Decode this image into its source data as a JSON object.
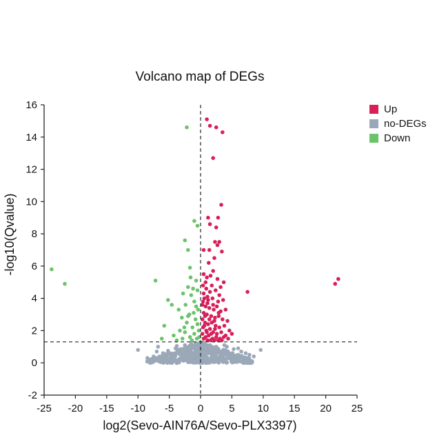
{
  "chart_data": {
    "type": "scatter",
    "title": "Volcano map of DEGs",
    "xlabel": "log2(Sevo-AIN76A/Sevo-PLX3397)",
    "ylabel": "-log10(Qvalue)",
    "xlim": [
      -25,
      25
    ],
    "ylim": [
      -2,
      16
    ],
    "xticks": [
      -25,
      -20,
      -15,
      -10,
      -5,
      0,
      5,
      10,
      15,
      20,
      25
    ],
    "yticks": [
      -2,
      0,
      2,
      4,
      6,
      8,
      10,
      12,
      14,
      16
    ],
    "thresholds": {
      "x": 0,
      "y": 1.3
    },
    "legend": [
      {
        "name": "Up",
        "color": "#d81f5a"
      },
      {
        "name": "no-DEGs",
        "color": "#9aa8b8"
      },
      {
        "name": "Down",
        "color": "#6cc36a"
      }
    ],
    "series": [
      {
        "name": "Up",
        "color": "#d81f5a",
        "points": [
          [
            1.0,
            15.1
          ],
          [
            1.5,
            14.7
          ],
          [
            2.5,
            14.6
          ],
          [
            3.5,
            14.3
          ],
          [
            2.0,
            12.7
          ],
          [
            3.3,
            9.8
          ],
          [
            1.2,
            9.0
          ],
          [
            2.8,
            9.0
          ],
          [
            1.5,
            8.6
          ],
          [
            2.5,
            8.4
          ],
          [
            2.3,
            7.5
          ],
          [
            3.0,
            7.5
          ],
          [
            2.7,
            7.3
          ],
          [
            0.5,
            7.0
          ],
          [
            1.4,
            7.0
          ],
          [
            3.4,
            6.9
          ],
          [
            1.3,
            6.2
          ],
          [
            2.2,
            6.5
          ],
          [
            2.0,
            5.7
          ],
          [
            0.5,
            5.5
          ],
          [
            1.0,
            5.3
          ],
          [
            1.6,
            5.4
          ],
          [
            2.7,
            5.2
          ],
          [
            3.7,
            5.0
          ],
          [
            7.5,
            4.4
          ],
          [
            22.0,
            5.2
          ],
          [
            21.5,
            4.9
          ],
          [
            0.4,
            4.8
          ],
          [
            0.9,
            4.6
          ],
          [
            1.5,
            4.4
          ],
          [
            2.4,
            4.5
          ],
          [
            3.0,
            4.2
          ],
          [
            0.6,
            4.0
          ],
          [
            1.2,
            3.9
          ],
          [
            1.9,
            4.0
          ],
          [
            2.8,
            3.8
          ],
          [
            3.6,
            3.9
          ],
          [
            0.3,
            3.6
          ],
          [
            0.8,
            3.5
          ],
          [
            1.4,
            3.4
          ],
          [
            2.1,
            3.3
          ],
          [
            2.6,
            3.5
          ],
          [
            3.2,
            3.2
          ],
          [
            4.0,
            3.3
          ],
          [
            0.5,
            3.1
          ],
          [
            1.0,
            3.0
          ],
          [
            1.7,
            2.9
          ],
          [
            2.3,
            2.8
          ],
          [
            2.9,
            2.9
          ],
          [
            3.5,
            2.7
          ],
          [
            4.3,
            2.6
          ],
          [
            0.3,
            2.7
          ],
          [
            0.7,
            2.5
          ],
          [
            1.2,
            2.4
          ],
          [
            1.8,
            2.5
          ],
          [
            2.4,
            2.3
          ],
          [
            3.0,
            2.2
          ],
          [
            3.8,
            2.3
          ],
          [
            4.6,
            2.0
          ],
          [
            0.4,
            2.2
          ],
          [
            0.9,
            2.0
          ],
          [
            1.5,
            2.1
          ],
          [
            2.0,
            1.9
          ],
          [
            2.6,
            1.8
          ],
          [
            3.3,
            1.9
          ],
          [
            4.0,
            1.7
          ],
          [
            5.0,
            1.8
          ],
          [
            0.3,
            1.8
          ],
          [
            0.8,
            1.6
          ],
          [
            1.3,
            1.7
          ],
          [
            1.9,
            1.5
          ],
          [
            2.5,
            1.6
          ],
          [
            3.1,
            1.5
          ],
          [
            3.7,
            1.6
          ],
          [
            4.4,
            1.5
          ],
          [
            0.5,
            1.5
          ],
          [
            1.1,
            1.4
          ],
          [
            1.6,
            1.4
          ],
          [
            2.2,
            1.4
          ],
          [
            2.8,
            1.4
          ],
          [
            3.4,
            1.4
          ],
          [
            0.4,
            3.8
          ],
          [
            1.1,
            3.7
          ],
          [
            0.7,
            2.9
          ],
          [
            1.4,
            2.7
          ],
          [
            2.2,
            2.6
          ],
          [
            0.6,
            2.3
          ],
          [
            1.0,
            1.9
          ],
          [
            1.7,
            1.8
          ],
          [
            2.3,
            2.1
          ],
          [
            0.5,
            4.3
          ],
          [
            1.1,
            4.1
          ],
          [
            0.8,
            5.0
          ],
          [
            1.8,
            4.8
          ],
          [
            3.2,
            4.7
          ],
          [
            2.0,
            3.6
          ],
          [
            2.9,
            3.1
          ]
        ]
      },
      {
        "name": "no-DEGs",
        "color": "#9aa8b8",
        "points": [
          [
            -10.0,
            0.8
          ],
          [
            9.6,
            0.8
          ],
          [
            -6.0,
            0.6
          ],
          [
            6.5,
            0.7
          ],
          [
            7.8,
            0.5
          ],
          [
            -7.5,
            0.4
          ],
          [
            -5.0,
            0.3
          ],
          [
            5.0,
            0.4
          ],
          [
            -3.0,
            0.2
          ],
          [
            3.5,
            0.3
          ],
          [
            -4.0,
            0.9
          ],
          [
            4.2,
            1.0
          ],
          [
            -2.5,
            1.1
          ],
          [
            2.5,
            1.0
          ],
          [
            -1.5,
            1.2
          ],
          [
            1.5,
            1.1
          ],
          [
            -0.5,
            1.2
          ],
          [
            0.5,
            1.25
          ],
          [
            -6.8,
            1.0
          ],
          [
            6.0,
            0.9
          ],
          [
            -8.5,
            0.3
          ],
          [
            8.5,
            0.4
          ],
          [
            -5.5,
            0.1
          ],
          [
            5.5,
            0.15
          ],
          [
            -2.0,
            0.05
          ],
          [
            2.0,
            0.05
          ],
          [
            -3.5,
            0.6
          ],
          [
            3.0,
            0.7
          ],
          [
            -1.0,
            0.5
          ],
          [
            1.0,
            0.6
          ],
          [
            0.0,
            0.8
          ],
          [
            0.0,
            0.3
          ],
          [
            -4.5,
            0.45
          ],
          [
            4.5,
            0.55
          ],
          [
            -2.8,
            0.35
          ],
          [
            2.8,
            0.25
          ],
          [
            -1.8,
            0.85
          ],
          [
            1.8,
            0.75
          ],
          [
            -0.8,
            1.0
          ],
          [
            0.8,
            0.95
          ],
          [
            -6.2,
            0.25
          ],
          [
            6.3,
            0.3
          ],
          [
            -7.0,
            0.7
          ],
          [
            7.2,
            0.6
          ],
          [
            -3.8,
            1.05
          ],
          [
            3.8,
            1.1
          ],
          [
            -5.2,
            0.75
          ],
          [
            5.3,
            0.85
          ],
          [
            -0.3,
            0.15
          ],
          [
            0.3,
            0.2
          ]
        ]
      },
      {
        "name": "Down",
        "color": "#6cc36a",
        "points": [
          [
            -2.2,
            14.6
          ],
          [
            -23.8,
            5.8
          ],
          [
            -21.7,
            4.9
          ],
          [
            -7.2,
            5.1
          ],
          [
            -1.0,
            8.8
          ],
          [
            -0.5,
            8.5
          ],
          [
            -2.5,
            7.6
          ],
          [
            -2.0,
            7.0
          ],
          [
            -1.7,
            5.9
          ],
          [
            -1.6,
            5.3
          ],
          [
            -0.7,
            5.1
          ],
          [
            -2.0,
            4.7
          ],
          [
            -1.2,
            4.6
          ],
          [
            -2.8,
            4.3
          ],
          [
            -0.5,
            4.5
          ],
          [
            -1.5,
            4.2
          ],
          [
            -5.2,
            3.9
          ],
          [
            -4.6,
            3.6
          ],
          [
            -3.5,
            3.3
          ],
          [
            -2.4,
            3.6
          ],
          [
            -1.0,
            3.8
          ],
          [
            -0.4,
            3.3
          ],
          [
            -1.8,
            3.0
          ],
          [
            -3.0,
            2.8
          ],
          [
            -0.8,
            2.7
          ],
          [
            -2.2,
            2.5
          ],
          [
            -5.8,
            2.3
          ],
          [
            -1.3,
            2.2
          ],
          [
            -0.5,
            2.4
          ],
          [
            -3.3,
            2.0
          ],
          [
            -2.5,
            1.9
          ],
          [
            -1.0,
            1.8
          ],
          [
            -0.3,
            2.0
          ],
          [
            -4.3,
            1.7
          ],
          [
            -1.7,
            1.6
          ],
          [
            -6.2,
            1.5
          ],
          [
            -0.6,
            1.5
          ],
          [
            -2.9,
            1.5
          ],
          [
            -1.4,
            1.4
          ],
          [
            -3.8,
            1.4
          ],
          [
            -0.2,
            1.6
          ],
          [
            -2.0,
            2.9
          ],
          [
            -1.1,
            3.1
          ],
          [
            -0.7,
            3.5
          ],
          [
            -2.6,
            2.2
          ]
        ]
      }
    ]
  }
}
